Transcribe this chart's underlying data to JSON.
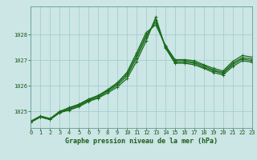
{
  "bg_color": "#cce5e5",
  "plot_bg_color": "#cce5e5",
  "grid_color": "#99cccc",
  "line_color": "#1a6b1a",
  "title": "Graphe pression niveau de la mer (hPa)",
  "tick_color": "#1a5c1a",
  "xlim": [
    0,
    23
  ],
  "ylim": [
    1024.35,
    1029.1
  ],
  "yticks": [
    1025,
    1026,
    1027,
    1028
  ],
  "xticks": [
    0,
    1,
    2,
    3,
    4,
    5,
    6,
    7,
    8,
    9,
    10,
    11,
    12,
    13,
    14,
    15,
    16,
    17,
    18,
    19,
    20,
    21,
    22,
    23
  ],
  "lines": [
    [
      1024.58,
      1024.78,
      1024.68,
      1024.95,
      1025.05,
      1025.18,
      1025.38,
      1025.52,
      1025.72,
      1025.95,
      1026.28,
      1026.95,
      1027.75,
      1028.68,
      1027.48,
      1026.88,
      1026.88,
      1026.82,
      1026.68,
      1026.52,
      1026.42,
      1026.75,
      1026.98,
      1026.92
    ],
    [
      1024.58,
      1024.78,
      1024.68,
      1024.95,
      1025.08,
      1025.22,
      1025.42,
      1025.55,
      1025.78,
      1026.02,
      1026.38,
      1027.08,
      1027.88,
      1028.58,
      1027.52,
      1026.92,
      1026.92,
      1026.88,
      1026.72,
      1026.58,
      1026.48,
      1026.82,
      1027.05,
      1026.98
    ],
    [
      1024.6,
      1024.8,
      1024.7,
      1024.98,
      1025.12,
      1025.25,
      1025.45,
      1025.6,
      1025.82,
      1026.08,
      1026.45,
      1027.18,
      1027.98,
      1028.48,
      1027.55,
      1026.98,
      1026.98,
      1026.92,
      1026.78,
      1026.62,
      1026.52,
      1026.88,
      1027.1,
      1027.05
    ],
    [
      1024.62,
      1024.82,
      1024.72,
      1025.0,
      1025.15,
      1025.28,
      1025.48,
      1025.62,
      1025.85,
      1026.12,
      1026.52,
      1027.28,
      1028.08,
      1028.38,
      1027.58,
      1027.02,
      1027.02,
      1026.98,
      1026.82,
      1026.68,
      1026.58,
      1026.95,
      1027.18,
      1027.12
    ]
  ],
  "marker": "+",
  "markersize": 3.5,
  "linewidth": 0.9,
  "title_fontsize": 6.0,
  "tick_fontsize": 5.0
}
